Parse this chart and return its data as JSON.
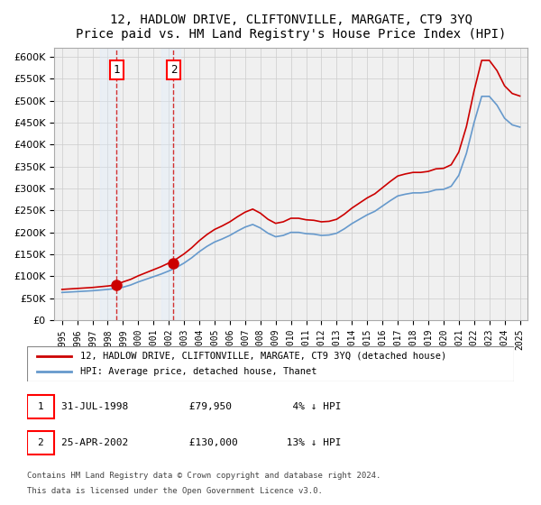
{
  "title": "12, HADLOW DRIVE, CLIFTONVILLE, MARGATE, CT9 3YQ",
  "subtitle": "Price paid vs. HM Land Registry's House Price Index (HPI)",
  "ylabel_ticks": [
    "£0",
    "£50K",
    "£100K",
    "£150K",
    "£200K",
    "£250K",
    "£300K",
    "£350K",
    "£400K",
    "£450K",
    "£500K",
    "£550K",
    "£600K"
  ],
  "ylim": [
    0,
    620000
  ],
  "ytick_values": [
    0,
    50000,
    100000,
    150000,
    200000,
    250000,
    300000,
    350000,
    400000,
    450000,
    500000,
    550000,
    600000
  ],
  "sale1_date": 1998.58,
  "sale1_price": 79950,
  "sale1_label": "1",
  "sale2_date": 2002.31,
  "sale2_price": 130000,
  "sale2_label": "2",
  "legend_line1": "12, HADLOW DRIVE, CLIFTONVILLE, MARGATE, CT9 3YQ (detached house)",
  "legend_line2": "HPI: Average price, detached house, Thanet",
  "footnote1": "1     31-JUL-1998          £79,950          4% ↓ HPI",
  "footnote2": "2     25-APR-2002          £130,000        13% ↓ HPI",
  "footnote3": "Contains HM Land Registry data © Crown copyright and database right 2024.",
  "footnote4": "This data is licensed under the Open Government Licence v3.0.",
  "hpi_color": "#6699cc",
  "price_color": "#cc0000",
  "sale_marker_color": "#cc0000",
  "vline_color": "#cc0000",
  "highlight_color": "#ddeeff",
  "grid_color": "#cccccc",
  "background_color": "#f0f0f0"
}
